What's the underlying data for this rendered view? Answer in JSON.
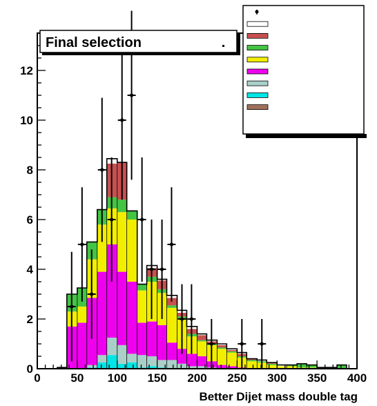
{
  "chart_data": {
    "type": "bar",
    "stacked": true,
    "title": "",
    "stat_box_label": "Final selection",
    "xlabel": "Better  Dijet mass double tag",
    "ylabel": "",
    "xlim": [
      0,
      400
    ],
    "ylim": [
      0,
      13.5
    ],
    "x_ticks": [
      0,
      50,
      100,
      150,
      200,
      250,
      300,
      350,
      400
    ],
    "y_ticks": [
      0,
      2,
      4,
      6,
      8,
      10,
      12
    ],
    "bin_edges": [
      0,
      12,
      25,
      37,
      50,
      62,
      75,
      87,
      100,
      112,
      125,
      137,
      150,
      162,
      175,
      187,
      200,
      212,
      225,
      237,
      250,
      262,
      275,
      287,
      300,
      312,
      325,
      337,
      350,
      362,
      375,
      387,
      400
    ],
    "series": [
      {
        "color": "#00e5e5",
        "values": [
          0,
          0,
          0,
          0,
          0,
          0.05,
          0.25,
          0.55,
          0.2,
          0.25,
          0.05,
          0.1,
          0.05,
          0,
          0,
          0,
          0,
          0,
          0,
          0,
          0,
          0,
          0,
          0,
          0,
          0,
          0,
          0,
          0,
          0,
          0,
          0
        ]
      },
      {
        "color": "#a9cfc8",
        "values": [
          0,
          0,
          0,
          0,
          0,
          0.1,
          0.3,
          0.7,
          0.75,
          0.35,
          0.5,
          0.4,
          0.3,
          0.35,
          0.2,
          0.1,
          0.1,
          0.05,
          0,
          0,
          0,
          0,
          0,
          0,
          0,
          0,
          0,
          0,
          0,
          0,
          0,
          0
        ]
      },
      {
        "color": "#ee00ee",
        "values": [
          0,
          0,
          0.05,
          1.7,
          1.85,
          2.7,
          3.35,
          3.75,
          2.95,
          2.9,
          1.3,
          1.4,
          1.4,
          0.7,
          0.6,
          0.5,
          0.4,
          0.25,
          0.15,
          0.1,
          0.05,
          0,
          0,
          0,
          0,
          0,
          0,
          0,
          0,
          0,
          0,
          0
        ]
      },
      {
        "color": "#f2ee00",
        "values": [
          0,
          0,
          0,
          0.6,
          0.65,
          1.55,
          1.9,
          1.45,
          2.4,
          2.5,
          1.3,
          1.6,
          1.3,
          1.4,
          1.2,
          0.7,
          0.6,
          0.65,
          0.65,
          0.55,
          0.4,
          0.3,
          0.25,
          0.15,
          0.1,
          0.1,
          0.05,
          0.05,
          0.05,
          0.05,
          0,
          0
        ]
      },
      {
        "color": "#44c444",
        "values": [
          0,
          0,
          0,
          0.7,
          0.75,
          0.7,
          0.6,
          0.45,
          0.5,
          0.35,
          0.25,
          0.2,
          0.15,
          0.1,
          0.1,
          0.1,
          0.05,
          0.05,
          0.05,
          0.05,
          0.05,
          0.05,
          0.05,
          0.05,
          0,
          0.05,
          0.15,
          0.1,
          0,
          0,
          0.15,
          0
        ]
      },
      {
        "color": "#c85050",
        "values": [
          0,
          0,
          0,
          0,
          0,
          0,
          0,
          1.35,
          1.5,
          0,
          0,
          0.35,
          0.35,
          0.3,
          0.15,
          0.2,
          0.2,
          0.1,
          0.1,
          0.05,
          0.1,
          0.05,
          0,
          0.05,
          0,
          0,
          0,
          0,
          0,
          0,
          0,
          0
        ]
      },
      {
        "color": "#ffffff",
        "values": [
          0,
          0,
          0,
          0,
          0,
          0,
          0,
          0.2,
          0,
          0,
          0,
          0.1,
          0.05,
          0.1,
          0.1,
          0.1,
          0.05,
          0.05,
          0.05,
          0.05,
          0.05,
          0,
          0.05,
          0,
          0.05,
          0,
          0,
          0,
          0,
          0,
          0,
          0
        ]
      }
    ],
    "data_points": [
      {
        "x": 43,
        "y": 2.5,
        "err": 2.2
      },
      {
        "x": 56,
        "y": 5,
        "err": 2.3
      },
      {
        "x": 68,
        "y": 3,
        "err": 1.8
      },
      {
        "x": 81,
        "y": 8,
        "err": 2.9
      },
      {
        "x": 93,
        "y": 6,
        "err": 2.5
      },
      {
        "x": 106,
        "y": 10,
        "err": 3.2
      },
      {
        "x": 118,
        "y": 11,
        "err": 3.4
      },
      {
        "x": 131,
        "y": 6,
        "err": 2.5
      },
      {
        "x": 143,
        "y": 4,
        "err": 2.0
      },
      {
        "x": 156,
        "y": 4,
        "err": 2.0
      },
      {
        "x": 168,
        "y": 5,
        "err": 2.3
      },
      {
        "x": 181,
        "y": 2,
        "err": 1.4
      },
      {
        "x": 193,
        "y": 2,
        "err": 1.4
      },
      {
        "x": 218,
        "y": 1,
        "err": 1.0
      },
      {
        "x": 256,
        "y": 1,
        "err": 1.0
      },
      {
        "x": 281,
        "y": 1,
        "err": 1.0
      }
    ],
    "legend": {
      "placement": "top-right",
      "entries": [
        {
          "style": "marker",
          "color": "#000000",
          "lines": [
            "",
            ""
          ]
        },
        {
          "style": "box",
          "color": "#ffffff",
          "lines": [
            ""
          ]
        },
        {
          "style": "box",
          "color": "#c85050",
          "lines": [
            "",
            ""
          ]
        },
        {
          "style": "box",
          "color": "#44c444",
          "lines": [
            "",
            ""
          ]
        },
        {
          "style": "box",
          "color": "#f2ee00",
          "lines": [
            "",
            ""
          ]
        },
        {
          "style": "box",
          "color": "#ee00ee",
          "lines": [
            "",
            ""
          ]
        },
        {
          "style": "box",
          "color": "#a9cfc8",
          "lines": [
            "",
            ""
          ]
        },
        {
          "style": "box",
          "color": "#00e5e5",
          "lines": [
            "",
            ""
          ]
        },
        {
          "style": "box",
          "color": "#a0705a",
          "lines": [
            "",
            ""
          ]
        },
        {
          "style": "none",
          "color": "",
          "lines": [
            "",
            ""
          ]
        }
      ]
    }
  }
}
